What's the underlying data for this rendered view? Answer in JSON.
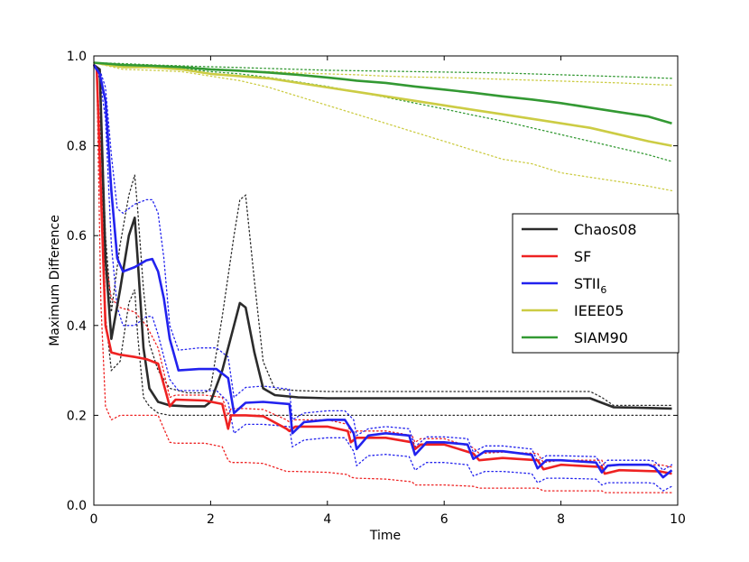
{
  "chart_data": {
    "type": "line",
    "title": "",
    "xlabel": "Time",
    "ylabel": "Maximum Difference",
    "xlim": [
      0,
      10
    ],
    "ylim": [
      0,
      1.0
    ],
    "xticks": [
      "0",
      "2",
      "4",
      "6",
      "8",
      "10"
    ],
    "yticks": [
      "0.0",
      "0.2",
      "0.4",
      "0.6",
      "0.8",
      "1.0"
    ],
    "legend_position": "center-right",
    "series": [
      {
        "name": "Chaos08",
        "color": "#2b2b2b",
        "x": [
          0,
          0.1,
          0.2,
          0.3,
          0.45,
          0.6,
          0.7,
          0.75,
          0.85,
          0.95,
          1.1,
          1.3,
          1.6,
          1.9,
          2.0,
          2.2,
          2.4,
          2.5,
          2.6,
          2.75,
          2.9,
          3.1,
          3.5,
          4,
          5,
          6,
          7,
          8,
          8.5,
          8.7,
          8.9,
          9.3,
          9.9
        ],
        "y": [
          0.98,
          0.97,
          0.55,
          0.37,
          0.48,
          0.6,
          0.64,
          0.55,
          0.35,
          0.26,
          0.23,
          0.222,
          0.22,
          0.22,
          0.23,
          0.3,
          0.4,
          0.45,
          0.44,
          0.34,
          0.26,
          0.245,
          0.24,
          0.238,
          0.238,
          0.238,
          0.238,
          0.238,
          0.238,
          0.228,
          0.218,
          0.217,
          0.215
        ],
        "upper": [
          0.98,
          0.97,
          0.6,
          0.43,
          0.58,
          0.69,
          0.735,
          0.66,
          0.48,
          0.36,
          0.3,
          0.26,
          0.25,
          0.25,
          0.26,
          0.42,
          0.6,
          0.68,
          0.69,
          0.5,
          0.32,
          0.258,
          0.255,
          0.253,
          0.253,
          0.253,
          0.253,
          0.253,
          0.253,
          0.24,
          0.222,
          0.222,
          0.222
        ],
        "lower": [
          0.98,
          0.97,
          0.42,
          0.3,
          0.32,
          0.45,
          0.48,
          0.38,
          0.24,
          0.22,
          0.205,
          0.2,
          0.2,
          0.2,
          0.2,
          0.2,
          0.2,
          0.2,
          0.2,
          0.2,
          0.2,
          0.2,
          0.2,
          0.2,
          0.2,
          0.2,
          0.2,
          0.2,
          0.2,
          0.2,
          0.2,
          0.2,
          0.2
        ]
      },
      {
        "name": "SF",
        "color": "#ee2222",
        "x": [
          0,
          0.05,
          0.12,
          0.2,
          0.3,
          0.45,
          0.7,
          0.9,
          1.1,
          1.3,
          1.4,
          1.9,
          2.2,
          2.3,
          2.35,
          2.6,
          2.9,
          3.3,
          3.35,
          3.45,
          4.0,
          4.35,
          4.4,
          4.5,
          5.0,
          5.45,
          5.5,
          5.6,
          6.0,
          6.5,
          6.6,
          7.0,
          7.6,
          7.7,
          8.0,
          8.7,
          8.75,
          9.0,
          9.7,
          9.9
        ],
        "y": [
          0.98,
          0.97,
          0.7,
          0.4,
          0.34,
          0.335,
          0.33,
          0.325,
          0.315,
          0.22,
          0.235,
          0.233,
          0.225,
          0.17,
          0.2,
          0.2,
          0.198,
          0.17,
          0.165,
          0.175,
          0.175,
          0.165,
          0.14,
          0.15,
          0.15,
          0.14,
          0.125,
          0.135,
          0.135,
          0.115,
          0.1,
          0.105,
          0.1,
          0.08,
          0.09,
          0.085,
          0.07,
          0.078,
          0.075,
          0.07
        ],
        "upper": [
          0.98,
          0.97,
          0.8,
          0.55,
          0.46,
          0.44,
          0.43,
          0.4,
          0.35,
          0.24,
          0.245,
          0.245,
          0.24,
          0.2,
          0.215,
          0.215,
          0.213,
          0.19,
          0.185,
          0.19,
          0.19,
          0.18,
          0.16,
          0.165,
          0.165,
          0.155,
          0.14,
          0.148,
          0.148,
          0.128,
          0.115,
          0.118,
          0.115,
          0.095,
          0.1,
          0.1,
          0.085,
          0.09,
          0.09,
          0.085
        ],
        "lower": [
          0.98,
          0.97,
          0.45,
          0.22,
          0.19,
          0.2,
          0.2,
          0.2,
          0.2,
          0.14,
          0.138,
          0.138,
          0.13,
          0.1,
          0.095,
          0.095,
          0.093,
          0.075,
          0.075,
          0.075,
          0.073,
          0.068,
          0.062,
          0.06,
          0.058,
          0.052,
          0.045,
          0.045,
          0.045,
          0.042,
          0.038,
          0.038,
          0.038,
          0.032,
          0.032,
          0.032,
          0.028,
          0.028,
          0.028,
          0.028
        ]
      },
      {
        "name": "STII",
        "name_sub": "6",
        "color": "#2222ee",
        "x": [
          0,
          0.1,
          0.2,
          0.3,
          0.4,
          0.5,
          0.7,
          0.9,
          1.0,
          1.1,
          1.2,
          1.3,
          1.45,
          1.8,
          2.1,
          2.3,
          2.4,
          2.6,
          2.9,
          3.35,
          3.4,
          3.6,
          4.0,
          4.3,
          4.45,
          4.5,
          4.7,
          5.0,
          5.4,
          5.5,
          5.7,
          6.0,
          6.4,
          6.5,
          6.7,
          7.0,
          7.5,
          7.6,
          7.75,
          8.0,
          8.6,
          8.7,
          8.8,
          9.0,
          9.5,
          9.6,
          9.75,
          9.9
        ],
        "y": [
          0.98,
          0.96,
          0.9,
          0.7,
          0.55,
          0.52,
          0.53,
          0.545,
          0.548,
          0.52,
          0.46,
          0.37,
          0.3,
          0.303,
          0.303,
          0.283,
          0.205,
          0.228,
          0.23,
          0.225,
          0.16,
          0.185,
          0.19,
          0.19,
          0.16,
          0.125,
          0.155,
          0.16,
          0.155,
          0.112,
          0.14,
          0.14,
          0.135,
          0.103,
          0.12,
          0.12,
          0.112,
          0.082,
          0.1,
          0.1,
          0.095,
          0.073,
          0.088,
          0.09,
          0.09,
          0.085,
          0.062,
          0.078
        ],
        "upper": [
          0.98,
          0.97,
          0.93,
          0.78,
          0.66,
          0.65,
          0.67,
          0.68,
          0.68,
          0.65,
          0.55,
          0.4,
          0.345,
          0.35,
          0.35,
          0.33,
          0.24,
          0.262,
          0.265,
          0.258,
          0.19,
          0.205,
          0.21,
          0.21,
          0.19,
          0.155,
          0.17,
          0.175,
          0.17,
          0.13,
          0.152,
          0.152,
          0.148,
          0.118,
          0.132,
          0.132,
          0.125,
          0.098,
          0.11,
          0.11,
          0.108,
          0.088,
          0.1,
          0.1,
          0.1,
          0.098,
          0.078,
          0.09
        ],
        "lower": [
          0.98,
          0.95,
          0.86,
          0.58,
          0.44,
          0.4,
          0.4,
          0.42,
          0.42,
          0.38,
          0.33,
          0.28,
          0.255,
          0.255,
          0.255,
          0.23,
          0.16,
          0.18,
          0.18,
          0.175,
          0.13,
          0.145,
          0.15,
          0.15,
          0.12,
          0.088,
          0.11,
          0.113,
          0.108,
          0.078,
          0.095,
          0.095,
          0.09,
          0.065,
          0.075,
          0.075,
          0.07,
          0.05,
          0.06,
          0.06,
          0.058,
          0.045,
          0.05,
          0.05,
          0.05,
          0.048,
          0.032,
          0.042
        ]
      },
      {
        "name": "IEEE05",
        "color": "#cccc44",
        "x": [
          0,
          0.5,
          1,
          1.5,
          2,
          2.5,
          3,
          3.5,
          4,
          4.5,
          5,
          5.5,
          6,
          6.5,
          7,
          7.5,
          8,
          8.5,
          9,
          9.5,
          9.9
        ],
        "y": [
          0.985,
          0.975,
          0.975,
          0.97,
          0.96,
          0.955,
          0.95,
          0.94,
          0.93,
          0.92,
          0.91,
          0.9,
          0.89,
          0.88,
          0.87,
          0.86,
          0.85,
          0.84,
          0.825,
          0.81,
          0.8
        ],
        "upper": [
          0.985,
          0.982,
          0.98,
          0.975,
          0.97,
          0.967,
          0.965,
          0.962,
          0.96,
          0.958,
          0.955,
          0.953,
          0.952,
          0.95,
          0.948,
          0.946,
          0.944,
          0.942,
          0.94,
          0.937,
          0.935
        ],
        "lower": [
          0.985,
          0.97,
          0.968,
          0.965,
          0.955,
          0.945,
          0.93,
          0.91,
          0.89,
          0.87,
          0.85,
          0.83,
          0.81,
          0.79,
          0.77,
          0.76,
          0.74,
          0.73,
          0.72,
          0.71,
          0.7
        ]
      },
      {
        "name": "SIAM90",
        "color": "#339933",
        "x": [
          0,
          0.5,
          1,
          1.5,
          2,
          2.5,
          3,
          3.5,
          4,
          4.5,
          5,
          5.5,
          6,
          6.5,
          7,
          7.5,
          8,
          8.5,
          9,
          9.5,
          9.9
        ],
        "y": [
          0.985,
          0.98,
          0.978,
          0.975,
          0.97,
          0.967,
          0.963,
          0.958,
          0.952,
          0.945,
          0.94,
          0.932,
          0.925,
          0.918,
          0.91,
          0.903,
          0.895,
          0.885,
          0.875,
          0.865,
          0.85
        ],
        "upper": [
          0.985,
          0.983,
          0.98,
          0.978,
          0.976,
          0.974,
          0.972,
          0.97,
          0.968,
          0.967,
          0.966,
          0.965,
          0.964,
          0.963,
          0.962,
          0.96,
          0.958,
          0.956,
          0.954,
          0.952,
          0.95
        ],
        "lower": [
          0.985,
          0.977,
          0.975,
          0.972,
          0.965,
          0.96,
          0.952,
          0.942,
          0.932,
          0.92,
          0.908,
          0.895,
          0.882,
          0.868,
          0.855,
          0.84,
          0.825,
          0.81,
          0.795,
          0.78,
          0.765
        ]
      }
    ]
  }
}
